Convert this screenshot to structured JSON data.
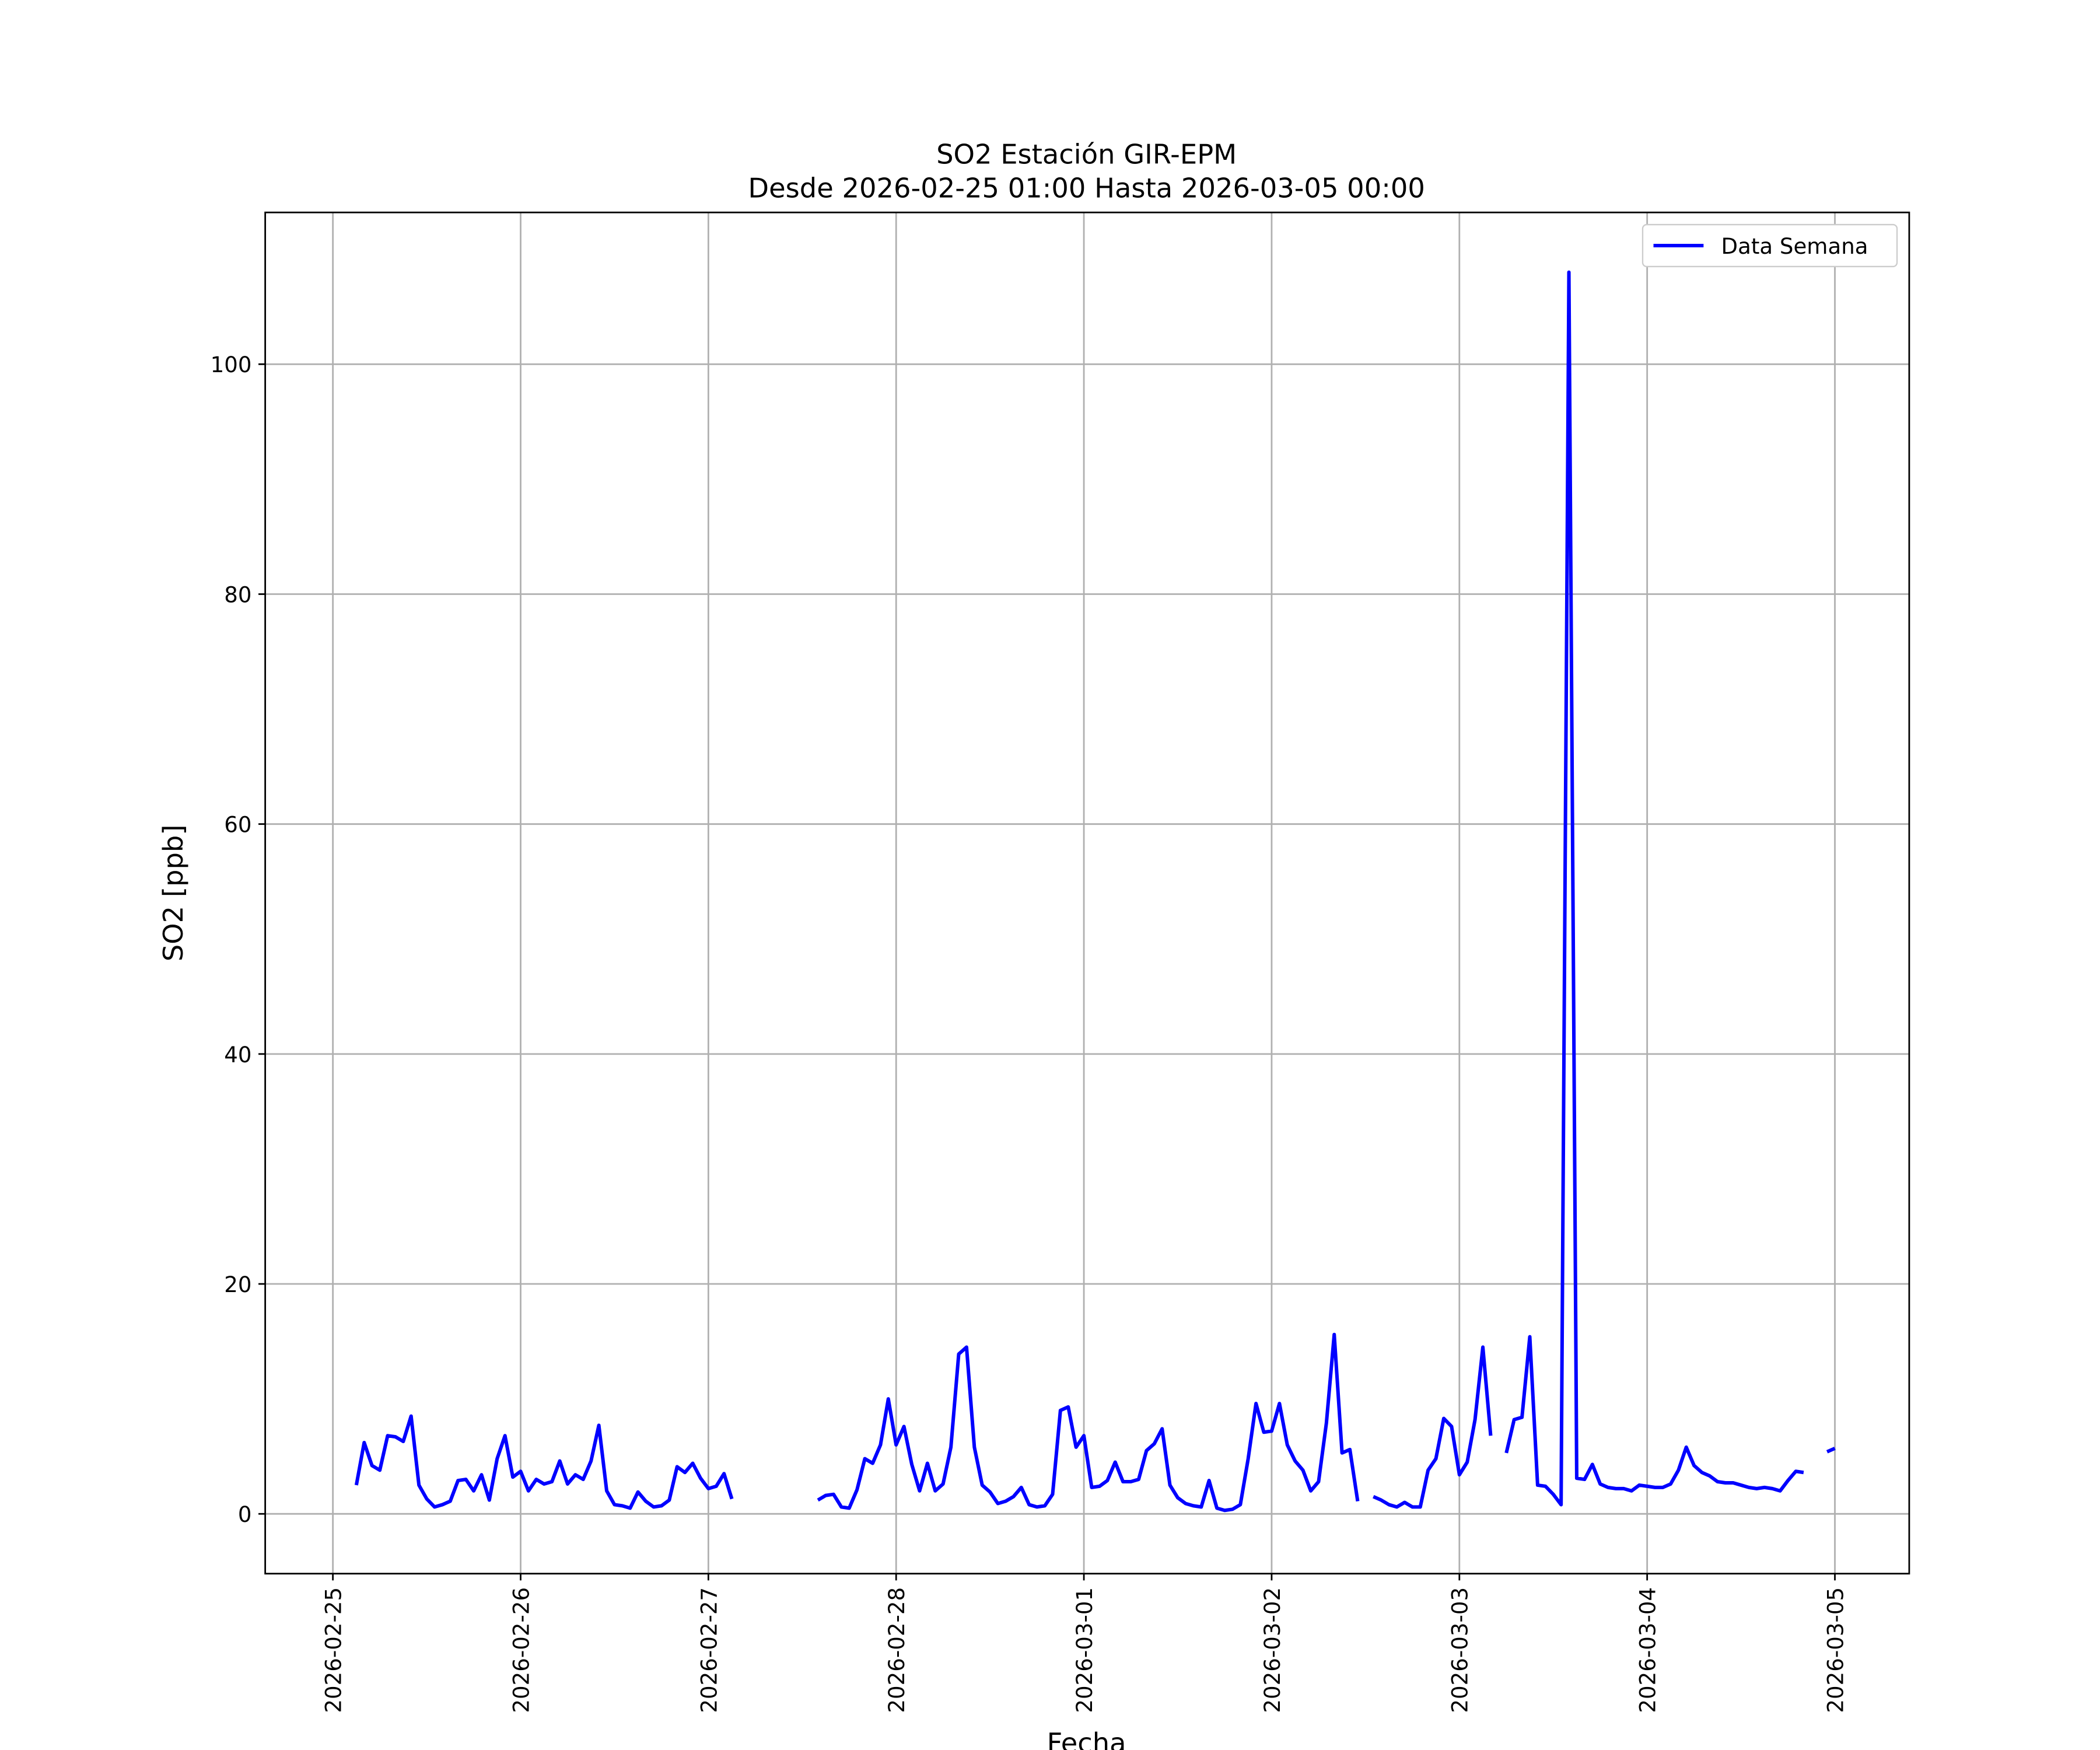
{
  "chart_data": {
    "type": "line",
    "title": "SO2 Estación GIR-EPM",
    "subtitle": "Desde 2026-02-25 01:00 Hasta 2026-03-05 00:00",
    "x_label": "Fecha",
    "y_label": "SO2 [ppb]",
    "legend": "upper right",
    "grid": true,
    "xlim": [
      "2026-02-24 15:21",
      "2026-03-05 09:30"
    ],
    "ylim": [
      -5.2,
      113.2
    ],
    "xticks": [
      "2026-02-25",
      "2026-02-26",
      "2026-02-27",
      "2026-02-28",
      "2026-03-01",
      "2026-03-02",
      "2026-03-03",
      "2026-03-04",
      "2026-03-05"
    ],
    "yticks": [
      0,
      20,
      40,
      60,
      80,
      100
    ],
    "x": [
      "2026-02-25 03:00",
      "2026-02-25 04:00",
      "2026-02-25 05:00",
      "2026-02-25 06:00",
      "2026-02-25 07:00",
      "2026-02-25 08:00",
      "2026-02-25 09:00",
      "2026-02-25 10:00",
      "2026-02-25 11:00",
      "2026-02-25 12:00",
      "2026-02-25 13:00",
      "2026-02-25 14:00",
      "2026-02-25 15:00",
      "2026-02-25 16:00",
      "2026-02-25 17:00",
      "2026-02-25 18:00",
      "2026-02-25 19:00",
      "2026-02-25 20:00",
      "2026-02-25 21:00",
      "2026-02-25 22:00",
      "2026-02-25 23:00",
      "2026-02-26 00:00",
      "2026-02-26 01:00",
      "2026-02-26 02:00",
      "2026-02-26 03:00",
      "2026-02-26 04:00",
      "2026-02-26 05:00",
      "2026-02-26 06:00",
      "2026-02-26 07:00",
      "2026-02-26 08:00",
      "2026-02-26 09:00",
      "2026-02-26 10:00",
      "2026-02-26 11:00",
      "2026-02-26 12:00",
      "2026-02-26 13:00",
      "2026-02-26 14:00",
      "2026-02-26 15:00",
      "2026-02-26 16:00",
      "2026-02-26 17:00",
      "2026-02-26 18:00",
      "2026-02-26 19:00",
      "2026-02-26 20:00",
      "2026-02-26 21:00",
      "2026-02-26 22:00",
      "2026-02-26 23:00",
      "2026-02-27 00:00",
      "2026-02-27 01:00",
      "2026-02-27 02:00",
      "2026-02-27 03:00",
      "2026-02-27 04:00",
      "2026-02-27 05:00",
      "2026-02-27 06:00",
      "2026-02-27 07:00",
      "2026-02-27 08:00",
      "2026-02-27 09:00",
      "2026-02-27 10:00",
      "2026-02-27 11:00",
      "2026-02-27 12:00",
      "2026-02-27 13:00",
      "2026-02-27 14:00",
      "2026-02-27 15:00",
      "2026-02-27 16:00",
      "2026-02-27 17:00",
      "2026-02-27 18:00",
      "2026-02-27 19:00",
      "2026-02-27 20:00",
      "2026-02-27 21:00",
      "2026-02-27 22:00",
      "2026-02-27 23:00",
      "2026-02-28 00:00",
      "2026-02-28 01:00",
      "2026-02-28 02:00",
      "2026-02-28 03:00",
      "2026-02-28 04:00",
      "2026-02-28 05:00",
      "2026-02-28 06:00",
      "2026-02-28 07:00",
      "2026-02-28 08:00",
      "2026-02-28 09:00",
      "2026-02-28 10:00",
      "2026-02-28 11:00",
      "2026-02-28 12:00",
      "2026-02-28 13:00",
      "2026-02-28 14:00",
      "2026-02-28 15:00",
      "2026-02-28 16:00",
      "2026-02-28 17:00",
      "2026-02-28 18:00",
      "2026-02-28 19:00",
      "2026-02-28 20:00",
      "2026-02-28 21:00",
      "2026-02-28 22:00",
      "2026-02-28 23:00",
      "2026-03-01 00:00",
      "2026-03-01 01:00",
      "2026-03-01 02:00",
      "2026-03-01 03:00",
      "2026-03-01 04:00",
      "2026-03-01 05:00",
      "2026-03-01 06:00",
      "2026-03-01 07:00",
      "2026-03-01 08:00",
      "2026-03-01 09:00",
      "2026-03-01 10:00",
      "2026-03-01 11:00",
      "2026-03-01 12:00",
      "2026-03-01 13:00",
      "2026-03-01 14:00",
      "2026-03-01 15:00",
      "2026-03-01 16:00",
      "2026-03-01 17:00",
      "2026-03-01 18:00",
      "2026-03-01 19:00",
      "2026-03-01 20:00",
      "2026-03-01 21:00",
      "2026-03-01 22:00",
      "2026-03-01 23:00",
      "2026-03-02 00:00",
      "2026-03-02 01:00",
      "2026-03-02 02:00",
      "2026-03-02 03:00",
      "2026-03-02 04:00",
      "2026-03-02 05:00",
      "2026-03-02 06:00",
      "2026-03-02 07:00",
      "2026-03-02 08:00",
      "2026-03-02 09:00",
      "2026-03-02 10:00",
      "2026-03-02 11:00",
      "2026-03-02 12:00",
      "2026-03-02 13:00",
      "2026-03-02 14:00",
      "2026-03-02 15:00",
      "2026-03-02 16:00",
      "2026-03-02 17:00",
      "2026-03-02 18:00",
      "2026-03-02 19:00",
      "2026-03-02 20:00",
      "2026-03-02 21:00",
      "2026-03-02 22:00",
      "2026-03-02 23:00",
      "2026-03-03 00:00",
      "2026-03-03 01:00",
      "2026-03-03 02:00",
      "2026-03-03 03:00",
      "2026-03-03 04:00",
      "2026-03-03 05:00",
      "2026-03-03 06:00",
      "2026-03-03 07:00",
      "2026-03-03 08:00",
      "2026-03-03 09:00",
      "2026-03-03 10:00",
      "2026-03-03 11:00",
      "2026-03-03 12:00",
      "2026-03-03 13:00",
      "2026-03-03 14:00",
      "2026-03-03 15:00",
      "2026-03-03 16:00",
      "2026-03-03 17:00",
      "2026-03-03 18:00",
      "2026-03-03 19:00",
      "2026-03-03 20:00",
      "2026-03-03 21:00",
      "2026-03-03 22:00",
      "2026-03-03 23:00",
      "2026-03-04 00:00",
      "2026-03-04 01:00",
      "2026-03-04 02:00",
      "2026-03-04 03:00",
      "2026-03-04 04:00",
      "2026-03-04 05:00",
      "2026-03-04 06:00",
      "2026-03-04 07:00",
      "2026-03-04 08:00",
      "2026-03-04 09:00",
      "2026-03-04 10:00",
      "2026-03-04 11:00",
      "2026-03-04 12:00",
      "2026-03-04 13:00",
      "2026-03-04 14:00",
      "2026-03-04 15:00",
      "2026-03-04 16:00",
      "2026-03-04 17:00",
      "2026-03-04 18:00",
      "2026-03-04 19:00",
      "2026-03-04 20:00",
      "2026-03-04 21:00",
      "2026-03-04 22:00",
      "2026-03-04 23:00",
      "2026-03-05 00:00"
    ],
    "series": [
      {
        "name": "Data Semana",
        "color": "#0000ff",
        "values": [
          2.5,
          6.2,
          4.2,
          3.8,
          6.8,
          6.7,
          6.3,
          8.5,
          2.5,
          1.3,
          0.6,
          0.8,
          1.1,
          2.9,
          3.0,
          2.0,
          3.4,
          1.2,
          4.8,
          6.8,
          3.2,
          3.7,
          2.0,
          3.0,
          2.6,
          2.8,
          4.6,
          2.6,
          3.4,
          3.0,
          4.6,
          7.7,
          2.0,
          0.8,
          0.7,
          0.5,
          1.9,
          1.1,
          0.6,
          0.7,
          1.2,
          4.1,
          3.6,
          4.4,
          3.1,
          2.2,
          2.4,
          3.5,
          1.3,
          null,
          null,
          null,
          null,
          null,
          null,
          null,
          null,
          null,
          null,
          1.2,
          1.6,
          1.7,
          0.6,
          0.5,
          2.1,
          4.8,
          4.4,
          6.0,
          10.0,
          6.0,
          7.6,
          4.3,
          2.0,
          4.4,
          2.0,
          2.6,
          5.8,
          13.9,
          14.5,
          5.8,
          2.5,
          1.9,
          0.9,
          1.1,
          1.5,
          2.3,
          0.8,
          0.6,
          0.7,
          1.7,
          9.0,
          9.3,
          5.8,
          6.8,
          2.3,
          2.4,
          2.9,
          4.5,
          2.8,
          2.8,
          3.0,
          5.5,
          6.1,
          7.4,
          2.5,
          1.4,
          0.9,
          0.7,
          0.6,
          2.9,
          0.5,
          0.3,
          0.4,
          0.8,
          4.8,
          9.6,
          7.1,
          7.2,
          9.6,
          6.0,
          4.6,
          3.8,
          2.0,
          2.8,
          7.9,
          15.6,
          5.3,
          5.6,
          1.1,
          null,
          1.5,
          1.2,
          0.8,
          0.6,
          1.0,
          0.6,
          0.6,
          3.8,
          4.8,
          8.3,
          7.6,
          3.4,
          4.5,
          8.2,
          14.5,
          6.8,
          null,
          5.3,
          8.2,
          8.4,
          15.4,
          2.5,
          2.4,
          1.7,
          0.8,
          108.0,
          3.1,
          3.0,
          4.3,
          2.6,
          2.3,
          2.2,
          2.2,
          2.0,
          2.5,
          2.4,
          2.3,
          2.3,
          2.6,
          3.8,
          5.8,
          4.2,
          3.6,
          3.3,
          2.8,
          2.7,
          2.7,
          2.5,
          2.3,
          2.2,
          2.3,
          2.2,
          2.0,
          2.9,
          3.7,
          3.6,
          null,
          null,
          5.4,
          5.7
        ]
      }
    ]
  }
}
